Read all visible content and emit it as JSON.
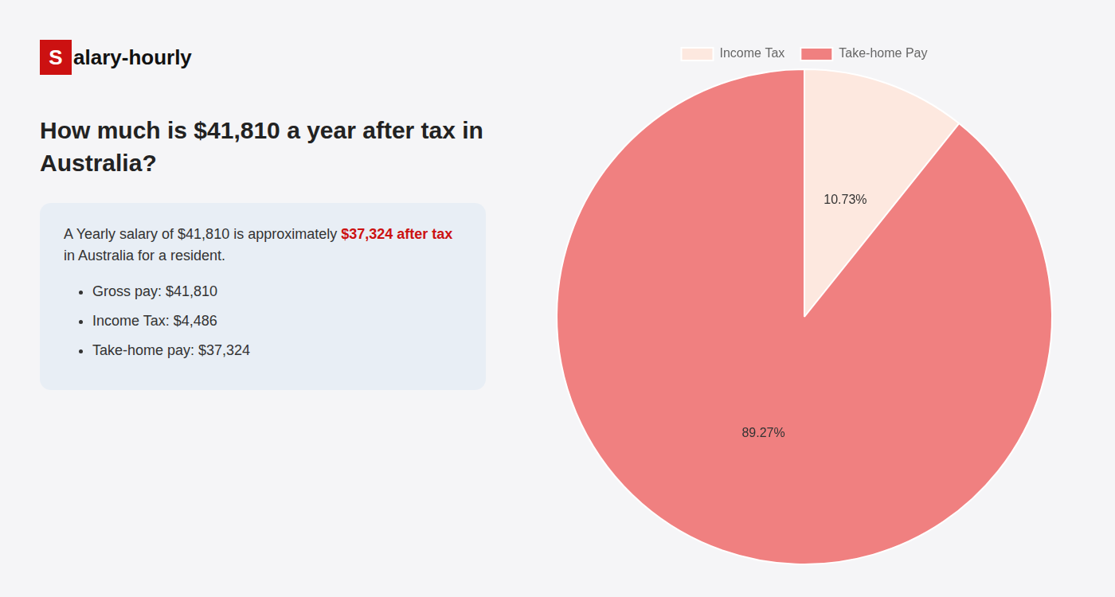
{
  "chart_data": {
    "type": "pie",
    "title": "How much is $41,810 a year after tax in\nAustralia?",
    "annotations": [
      "S",
      "alary-hourly",
      "A Yearly salary of $41,810 is approximately",
      "$37,324 after tax",
      "in Australia for a resident.",
      "Gross pay: $41,810",
      "Income Tax: $4,486",
      "Take-home pay: $37,324"
    ],
    "categories": [
      "Income Tax",
      "Take-home Pay"
    ],
    "values": [
      10.73,
      89.27
    ],
    "colors": [
      "#fde8df",
      "#f08080"
    ],
    "value_labels": [
      "10.73%",
      "89.27%"
    ],
    "data_labels": true,
    "legend": "top"
  }
}
